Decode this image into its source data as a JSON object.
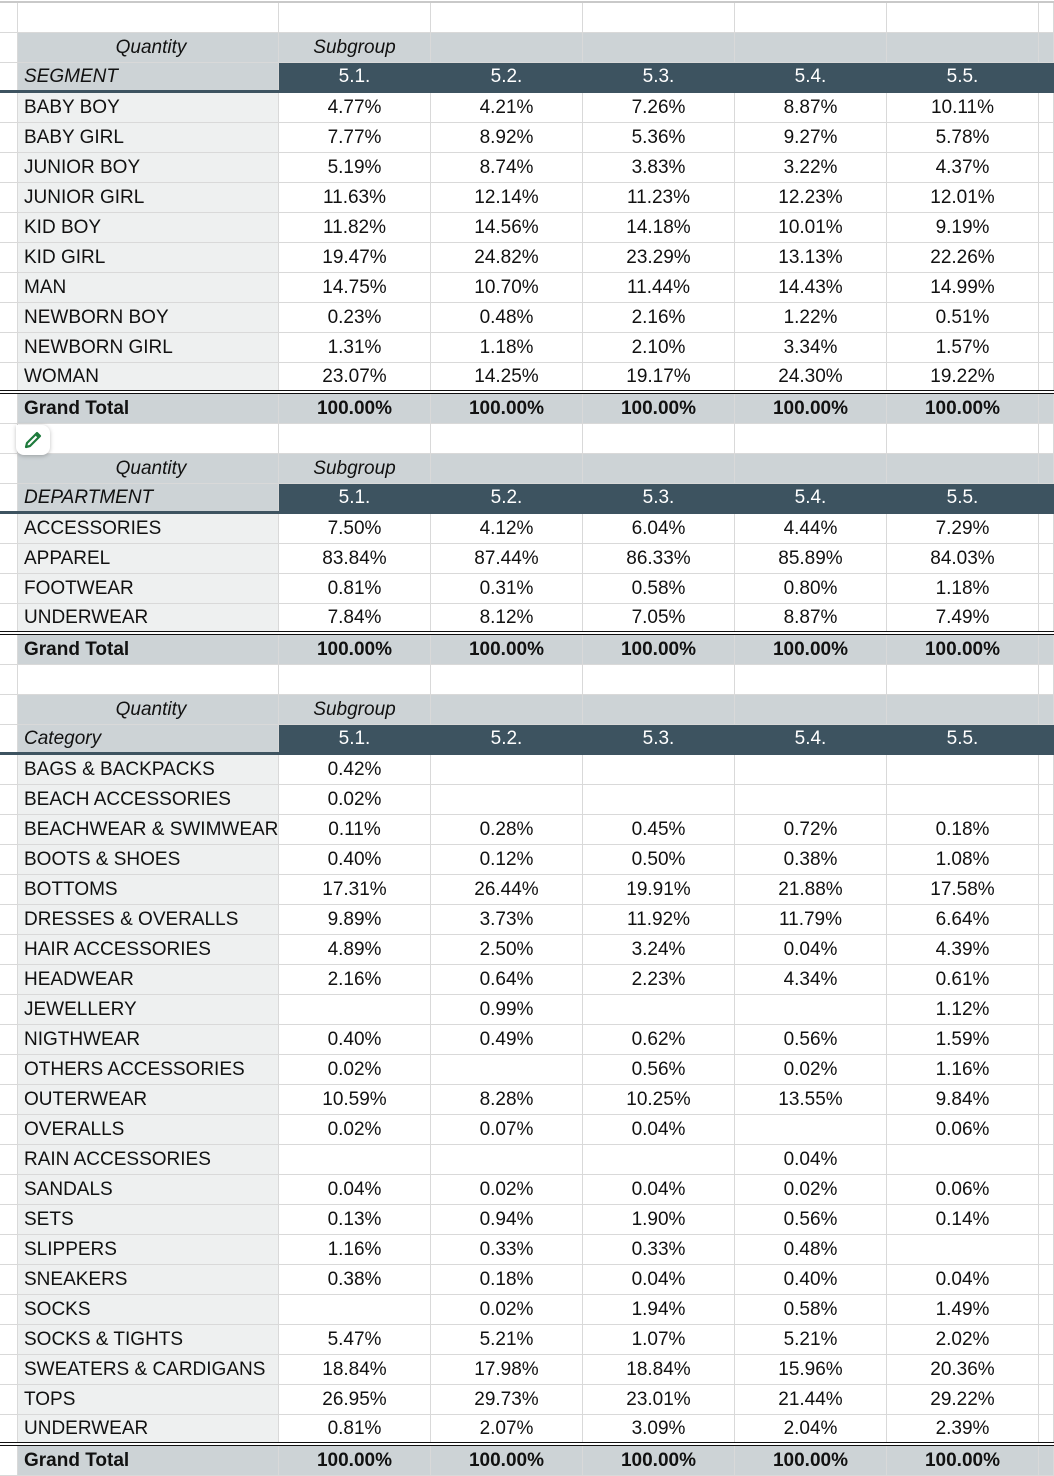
{
  "columns": [
    "5.1.",
    "5.2.",
    "5.3.",
    "5.4.",
    "5.5."
  ],
  "accent_color": "#3d5360",
  "tables": [
    {
      "header_left": "Quantity",
      "header_right": "Subgroup",
      "dimension": "SEGMENT",
      "rows": [
        {
          "label": "BABY BOY",
          "values": [
            "4.77%",
            "4.21%",
            "7.26%",
            "8.87%",
            "10.11%"
          ]
        },
        {
          "label": "BABY GIRL",
          "values": [
            "7.77%",
            "8.92%",
            "5.36%",
            "9.27%",
            "5.78%"
          ]
        },
        {
          "label": "JUNIOR BOY",
          "values": [
            "5.19%",
            "8.74%",
            "3.83%",
            "3.22%",
            "4.37%"
          ]
        },
        {
          "label": "JUNIOR GIRL",
          "values": [
            "11.63%",
            "12.14%",
            "11.23%",
            "12.23%",
            "12.01%"
          ]
        },
        {
          "label": "KID BOY",
          "values": [
            "11.82%",
            "14.56%",
            "14.18%",
            "10.01%",
            "9.19%"
          ]
        },
        {
          "label": "KID GIRL",
          "values": [
            "19.47%",
            "24.82%",
            "23.29%",
            "13.13%",
            "22.26%"
          ]
        },
        {
          "label": "MAN",
          "values": [
            "14.75%",
            "10.70%",
            "11.44%",
            "14.43%",
            "14.99%"
          ]
        },
        {
          "label": "NEWBORN BOY",
          "values": [
            "0.23%",
            "0.48%",
            "2.16%",
            "1.22%",
            "0.51%"
          ]
        },
        {
          "label": "NEWBORN GIRL",
          "values": [
            "1.31%",
            "1.18%",
            "2.10%",
            "3.34%",
            "1.57%"
          ]
        },
        {
          "label": "WOMAN",
          "values": [
            "23.07%",
            "14.25%",
            "19.17%",
            "24.30%",
            "19.22%"
          ]
        }
      ],
      "total": {
        "label": "Grand Total",
        "values": [
          "100.00%",
          "100.00%",
          "100.00%",
          "100.00%",
          "100.00%"
        ]
      }
    },
    {
      "header_left": "Quantity",
      "header_right": "Subgroup",
      "dimension": "DEPARTMENT",
      "rows": [
        {
          "label": "ACCESSORIES",
          "values": [
            "7.50%",
            "4.12%",
            "6.04%",
            "4.44%",
            "7.29%"
          ]
        },
        {
          "label": "APPAREL",
          "values": [
            "83.84%",
            "87.44%",
            "86.33%",
            "85.89%",
            "84.03%"
          ]
        },
        {
          "label": "FOOTWEAR",
          "values": [
            "0.81%",
            "0.31%",
            "0.58%",
            "0.80%",
            "1.18%"
          ]
        },
        {
          "label": "UNDERWEAR",
          "values": [
            "7.84%",
            "8.12%",
            "7.05%",
            "8.87%",
            "7.49%"
          ]
        }
      ],
      "total": {
        "label": "Grand Total",
        "values": [
          "100.00%",
          "100.00%",
          "100.00%",
          "100.00%",
          "100.00%"
        ]
      }
    },
    {
      "header_left": "Quantity",
      "header_right": "Subgroup",
      "dimension": "Category",
      "rows": [
        {
          "label": "BAGS & BACKPACKS",
          "values": [
            "0.42%",
            "",
            "",
            "",
            ""
          ]
        },
        {
          "label": "BEACH ACCESSORIES",
          "values": [
            "0.02%",
            "",
            "",
            "",
            ""
          ]
        },
        {
          "label": "BEACHWEAR & SWIMWEAR",
          "values": [
            "0.11%",
            "0.28%",
            "0.45%",
            "0.72%",
            "0.18%"
          ]
        },
        {
          "label": "BOOTS & SHOES",
          "values": [
            "0.40%",
            "0.12%",
            "0.50%",
            "0.38%",
            "1.08%"
          ]
        },
        {
          "label": "BOTTOMS",
          "values": [
            "17.31%",
            "26.44%",
            "19.91%",
            "21.88%",
            "17.58%"
          ]
        },
        {
          "label": "DRESSES & OVERALLS",
          "values": [
            "9.89%",
            "3.73%",
            "11.92%",
            "11.79%",
            "6.64%"
          ]
        },
        {
          "label": "HAIR ACCESSORIES",
          "values": [
            "4.89%",
            "2.50%",
            "3.24%",
            "0.04%",
            "4.39%"
          ]
        },
        {
          "label": "HEADWEAR",
          "values": [
            "2.16%",
            "0.64%",
            "2.23%",
            "4.34%",
            "0.61%"
          ]
        },
        {
          "label": "JEWELLERY",
          "values": [
            "",
            "0.99%",
            "",
            "",
            "1.12%"
          ]
        },
        {
          "label": "NIGTHWEAR",
          "values": [
            "0.40%",
            "0.49%",
            "0.62%",
            "0.56%",
            "1.59%"
          ]
        },
        {
          "label": "OTHERS ACCESSORIES",
          "values": [
            "0.02%",
            "",
            "0.56%",
            "0.02%",
            "1.16%"
          ]
        },
        {
          "label": "OUTERWEAR",
          "values": [
            "10.59%",
            "8.28%",
            "10.25%",
            "13.55%",
            "9.84%"
          ]
        },
        {
          "label": "OVERALLS",
          "values": [
            "0.02%",
            "0.07%",
            "0.04%",
            "",
            "0.06%"
          ]
        },
        {
          "label": "RAIN ACCESSORIES",
          "values": [
            "",
            "",
            "",
            "0.04%",
            ""
          ]
        },
        {
          "label": "SANDALS",
          "values": [
            "0.04%",
            "0.02%",
            "0.04%",
            "0.02%",
            "0.06%"
          ]
        },
        {
          "label": "SETS",
          "values": [
            "0.13%",
            "0.94%",
            "1.90%",
            "0.56%",
            "0.14%"
          ]
        },
        {
          "label": "SLIPPERS",
          "values": [
            "1.16%",
            "0.33%",
            "0.33%",
            "0.48%",
            ""
          ]
        },
        {
          "label": "SNEAKERS",
          "values": [
            "0.38%",
            "0.18%",
            "0.04%",
            "0.40%",
            "0.04%"
          ]
        },
        {
          "label": "SOCKS",
          "values": [
            "",
            "0.02%",
            "1.94%",
            "0.58%",
            "1.49%"
          ]
        },
        {
          "label": "SOCKS & TIGHTS",
          "values": [
            "5.47%",
            "5.21%",
            "1.07%",
            "5.21%",
            "2.02%"
          ]
        },
        {
          "label": "SWEATERS & CARDIGANS",
          "values": [
            "18.84%",
            "17.98%",
            "18.84%",
            "15.96%",
            "20.36%"
          ]
        },
        {
          "label": "TOPS",
          "values": [
            "26.95%",
            "29.73%",
            "23.01%",
            "21.44%",
            "29.22%"
          ]
        },
        {
          "label": "UNDERWEAR",
          "values": [
            "0.81%",
            "2.07%",
            "3.09%",
            "2.04%",
            "2.39%"
          ]
        }
      ],
      "total": {
        "label": "Grand Total",
        "values": [
          "100.00%",
          "100.00%",
          "100.00%",
          "100.00%",
          "100.00%"
        ]
      }
    }
  ]
}
